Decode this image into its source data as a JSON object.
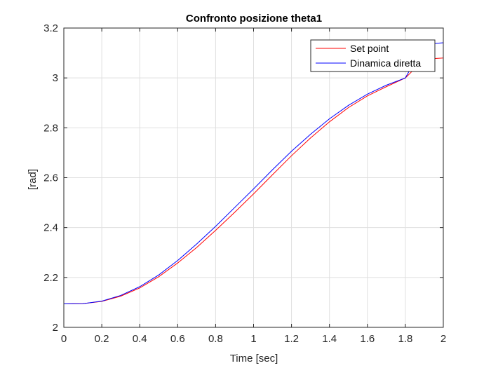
{
  "chart_data": {
    "type": "line",
    "title": "Confronto posizione theta1",
    "xlabel": "Time [sec]",
    "ylabel": "[rad]",
    "xlim": [
      0,
      2
    ],
    "ylim": [
      2,
      3.2
    ],
    "xticks": [
      0,
      0.2,
      0.4,
      0.6,
      0.8,
      1,
      1.2,
      1.4,
      1.6,
      1.8,
      2
    ],
    "yticks": [
      2,
      2.2,
      2.4,
      2.6,
      2.8,
      3,
      3.2
    ],
    "xtick_labels": [
      "0",
      "0.2",
      "0.4",
      "0.6",
      "0.8",
      "1",
      "1.2",
      "1.4",
      "1.6",
      "1.8",
      "2"
    ],
    "ytick_labels": [
      "2",
      "2.2",
      "2.4",
      "2.6",
      "2.8",
      "3",
      "3.2"
    ],
    "grid": true,
    "legend_position": "top-right",
    "series": [
      {
        "name": "Set point",
        "color": "#ff0000",
        "x": [
          0,
          0.1,
          0.2,
          0.3,
          0.4,
          0.5,
          0.6,
          0.7,
          0.8,
          0.9,
          1.0,
          1.1,
          1.2,
          1.3,
          1.4,
          1.5,
          1.6,
          1.7,
          1.8,
          1.9,
          2.0
        ],
        "y": [
          2.094,
          2.095,
          2.104,
          2.125,
          2.158,
          2.203,
          2.258,
          2.32,
          2.389,
          2.461,
          2.535,
          2.612,
          2.688,
          2.759,
          2.824,
          2.881,
          2.928,
          2.965,
          3.0,
          3.075,
          3.08
        ]
      },
      {
        "name": "Dinamica diretta",
        "color": "#0000ff",
        "x": [
          0,
          0.1,
          0.2,
          0.3,
          0.4,
          0.5,
          0.6,
          0.7,
          0.8,
          0.9,
          1.0,
          1.1,
          1.2,
          1.3,
          1.4,
          1.5,
          1.6,
          1.7,
          1.8,
          1.9,
          2.0
        ],
        "y": [
          2.094,
          2.095,
          2.105,
          2.128,
          2.163,
          2.21,
          2.268,
          2.334,
          2.405,
          2.48,
          2.555,
          2.632,
          2.706,
          2.774,
          2.836,
          2.89,
          2.935,
          2.971,
          3.0,
          3.135,
          3.141
        ]
      }
    ]
  }
}
